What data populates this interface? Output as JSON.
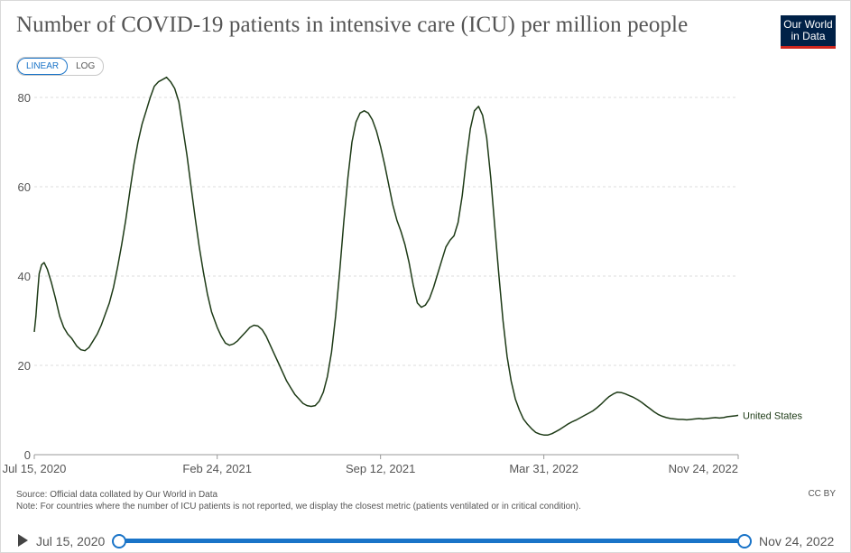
{
  "title": "Number of COVID-19 patients in intensive care (ICU) per million people",
  "logo": {
    "line1": "Our World",
    "line2": "in Data"
  },
  "scale_toggle": {
    "linear": "LINEAR",
    "log": "LOG",
    "active": "LINEAR"
  },
  "footer": {
    "source": "Source: Official data collated by Our World in Data",
    "note": "Note: For countries where the number of ICU patients is not reported, we display the closest metric (patients ventilated or in critical condition).",
    "license": "CC BY"
  },
  "timeline": {
    "start": "Jul 15, 2020",
    "end": "Nov 24, 2022"
  },
  "colors": {
    "line": "#1e3b17",
    "grid": "#dddddd",
    "axis": "#555555",
    "accent": "#1a74c8"
  },
  "chart_data": {
    "type": "line",
    "title": "Number of COVID-19 patients in intensive care (ICU) per million people",
    "xlabel": "",
    "ylabel": "",
    "ylim": [
      0,
      80
    ],
    "yticks": [
      0,
      20,
      40,
      60,
      80
    ],
    "xlim": [
      "2020-07-15",
      "2022-11-24"
    ],
    "xticks": [
      {
        "date": "2020-07-15",
        "label": "Jul 15, 2020"
      },
      {
        "date": "2021-02-24",
        "label": "Feb 24, 2021"
      },
      {
        "date": "2021-09-12",
        "label": "Sep 12, 2021"
      },
      {
        "date": "2022-03-31",
        "label": "Mar 31, 2022"
      },
      {
        "date": "2022-11-24",
        "label": "Nov 24, 2022"
      }
    ],
    "grid": true,
    "series": [
      {
        "name": "United States",
        "points": [
          [
            "2020-07-15",
            27.5
          ],
          [
            "2020-07-17",
            31
          ],
          [
            "2020-07-19",
            36
          ],
          [
            "2020-07-21",
            40.5
          ],
          [
            "2020-07-24",
            42.5
          ],
          [
            "2020-07-27",
            43
          ],
          [
            "2020-07-31",
            41.5
          ],
          [
            "2020-08-05",
            38.5
          ],
          [
            "2020-08-10",
            35
          ],
          [
            "2020-08-15",
            31
          ],
          [
            "2020-08-20",
            28.5
          ],
          [
            "2020-08-25",
            27
          ],
          [
            "2020-08-30",
            26
          ],
          [
            "2020-09-05",
            24.3
          ],
          [
            "2020-09-10",
            23.5
          ],
          [
            "2020-09-15",
            23.3
          ],
          [
            "2020-09-20",
            24
          ],
          [
            "2020-09-25",
            25.5
          ],
          [
            "2020-09-30",
            27
          ],
          [
            "2020-10-05",
            29
          ],
          [
            "2020-10-10",
            31.5
          ],
          [
            "2020-10-15",
            34
          ],
          [
            "2020-10-20",
            37.5
          ],
          [
            "2020-10-25",
            42
          ],
          [
            "2020-10-30",
            47
          ],
          [
            "2020-11-04",
            52.5
          ],
          [
            "2020-11-09",
            59
          ],
          [
            "2020-11-14",
            65
          ],
          [
            "2020-11-19",
            70
          ],
          [
            "2020-11-24",
            74
          ],
          [
            "2020-11-29",
            77
          ],
          [
            "2020-12-04",
            80
          ],
          [
            "2020-12-09",
            82.5
          ],
          [
            "2020-12-14",
            83.5
          ],
          [
            "2020-12-19",
            84
          ],
          [
            "2020-12-24",
            84.5
          ],
          [
            "2020-12-29",
            83.5
          ],
          [
            "2021-01-03",
            82
          ],
          [
            "2021-01-08",
            79
          ],
          [
            "2021-01-13",
            73
          ],
          [
            "2021-01-18",
            67
          ],
          [
            "2021-01-23",
            60
          ],
          [
            "2021-01-28",
            53
          ],
          [
            "2021-02-02",
            46.5
          ],
          [
            "2021-02-07",
            41
          ],
          [
            "2021-02-12",
            36
          ],
          [
            "2021-02-17",
            32
          ],
          [
            "2021-02-24",
            28.5
          ],
          [
            "2021-03-01",
            26.5
          ],
          [
            "2021-03-06",
            25
          ],
          [
            "2021-03-11",
            24.5
          ],
          [
            "2021-03-16",
            24.8
          ],
          [
            "2021-03-21",
            25.5
          ],
          [
            "2021-03-26",
            26.5
          ],
          [
            "2021-03-31",
            27.5
          ],
          [
            "2021-04-05",
            28.5
          ],
          [
            "2021-04-10",
            29
          ],
          [
            "2021-04-15",
            28.8
          ],
          [
            "2021-04-20",
            28
          ],
          [
            "2021-04-25",
            26.5
          ],
          [
            "2021-04-30",
            24.5
          ],
          [
            "2021-05-05",
            22.5
          ],
          [
            "2021-05-10",
            20.5
          ],
          [
            "2021-05-15",
            18.5
          ],
          [
            "2021-05-20",
            16.5
          ],
          [
            "2021-05-25",
            15
          ],
          [
            "2021-05-30",
            13.5
          ],
          [
            "2021-06-04",
            12.5
          ],
          [
            "2021-06-09",
            11.5
          ],
          [
            "2021-06-14",
            11
          ],
          [
            "2021-06-19",
            10.8
          ],
          [
            "2021-06-24",
            11
          ],
          [
            "2021-06-29",
            12
          ],
          [
            "2021-07-04",
            14
          ],
          [
            "2021-07-09",
            17.5
          ],
          [
            "2021-07-14",
            23
          ],
          [
            "2021-07-19",
            31
          ],
          [
            "2021-07-24",
            41
          ],
          [
            "2021-07-29",
            52
          ],
          [
            "2021-08-03",
            62
          ],
          [
            "2021-08-08",
            70
          ],
          [
            "2021-08-13",
            74.5
          ],
          [
            "2021-08-18",
            76.5
          ],
          [
            "2021-08-23",
            77
          ],
          [
            "2021-08-28",
            76.5
          ],
          [
            "2021-09-02",
            75
          ],
          [
            "2021-09-07",
            72.5
          ],
          [
            "2021-09-12",
            69
          ],
          [
            "2021-09-17",
            65
          ],
          [
            "2021-09-22",
            60.5
          ],
          [
            "2021-09-27",
            56
          ],
          [
            "2021-10-02",
            52.5
          ],
          [
            "2021-10-07",
            50
          ],
          [
            "2021-10-12",
            47
          ],
          [
            "2021-10-17",
            43
          ],
          [
            "2021-10-22",
            38
          ],
          [
            "2021-10-27",
            34
          ],
          [
            "2021-11-01",
            33
          ],
          [
            "2021-11-06",
            33.5
          ],
          [
            "2021-11-11",
            35
          ],
          [
            "2021-11-16",
            37.5
          ],
          [
            "2021-11-21",
            40.5
          ],
          [
            "2021-11-26",
            43.5
          ],
          [
            "2021-12-01",
            46.5
          ],
          [
            "2021-12-06",
            48
          ],
          [
            "2021-12-11",
            49
          ],
          [
            "2021-12-16",
            52
          ],
          [
            "2021-12-21",
            58
          ],
          [
            "2021-12-26",
            66
          ],
          [
            "2021-12-31",
            73
          ],
          [
            "2022-01-05",
            77
          ],
          [
            "2022-01-10",
            78
          ],
          [
            "2022-01-15",
            76
          ],
          [
            "2022-01-20",
            71
          ],
          [
            "2022-01-25",
            62
          ],
          [
            "2022-01-30",
            51
          ],
          [
            "2022-02-04",
            40
          ],
          [
            "2022-02-09",
            30
          ],
          [
            "2022-02-14",
            22
          ],
          [
            "2022-02-19",
            16.5
          ],
          [
            "2022-02-24",
            12.5
          ],
          [
            "2022-03-01",
            10
          ],
          [
            "2022-03-06",
            8
          ],
          [
            "2022-03-11",
            6.8
          ],
          [
            "2022-03-16",
            5.8
          ],
          [
            "2022-03-21",
            5
          ],
          [
            "2022-03-26",
            4.6
          ],
          [
            "2022-03-31",
            4.4
          ],
          [
            "2022-04-05",
            4.4
          ],
          [
            "2022-04-10",
            4.7
          ],
          [
            "2022-04-15",
            5.2
          ],
          [
            "2022-04-20",
            5.7
          ],
          [
            "2022-04-25",
            6.3
          ],
          [
            "2022-04-30",
            6.9
          ],
          [
            "2022-05-05",
            7.4
          ],
          [
            "2022-05-10",
            7.8
          ],
          [
            "2022-05-15",
            8.3
          ],
          [
            "2022-05-20",
            8.8
          ],
          [
            "2022-05-25",
            9.3
          ],
          [
            "2022-05-30",
            9.8
          ],
          [
            "2022-06-04",
            10.5
          ],
          [
            "2022-06-09",
            11.3
          ],
          [
            "2022-06-14",
            12.2
          ],
          [
            "2022-06-19",
            13
          ],
          [
            "2022-06-24",
            13.6
          ],
          [
            "2022-06-29",
            14
          ],
          [
            "2022-07-04",
            13.9
          ],
          [
            "2022-07-09",
            13.6
          ],
          [
            "2022-07-14",
            13.2
          ],
          [
            "2022-07-19",
            12.8
          ],
          [
            "2022-07-24",
            12.3
          ],
          [
            "2022-07-29",
            11.7
          ],
          [
            "2022-08-03",
            11
          ],
          [
            "2022-08-08",
            10.3
          ],
          [
            "2022-08-13",
            9.6
          ],
          [
            "2022-08-18",
            9
          ],
          [
            "2022-08-23",
            8.6
          ],
          [
            "2022-08-28",
            8.3
          ],
          [
            "2022-09-02",
            8.1
          ],
          [
            "2022-09-07",
            8
          ],
          [
            "2022-09-12",
            7.9
          ],
          [
            "2022-09-17",
            7.9
          ],
          [
            "2022-09-22",
            7.8
          ],
          [
            "2022-09-27",
            7.9
          ],
          [
            "2022-10-02",
            8
          ],
          [
            "2022-10-07",
            8.1
          ],
          [
            "2022-10-12",
            8
          ],
          [
            "2022-10-17",
            8.1
          ],
          [
            "2022-10-22",
            8.2
          ],
          [
            "2022-10-27",
            8.3
          ],
          [
            "2022-11-01",
            8.2
          ],
          [
            "2022-11-06",
            8.3
          ],
          [
            "2022-11-11",
            8.5
          ],
          [
            "2022-11-16",
            8.6
          ],
          [
            "2022-11-21",
            8.7
          ],
          [
            "2022-11-24",
            8.8
          ]
        ]
      }
    ]
  }
}
